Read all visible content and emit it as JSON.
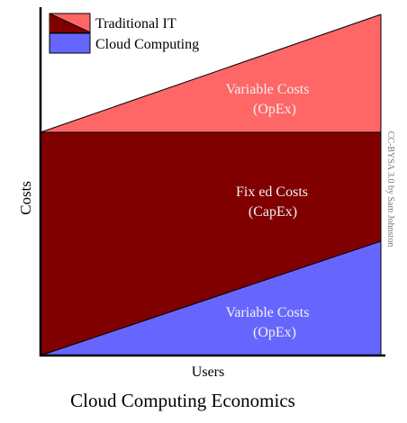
{
  "title": "Cloud Computing Economics",
  "x_axis_label": "Users",
  "y_axis_label": "Costs",
  "legend": {
    "traditional": "Traditional IT",
    "cloud": "Cloud Computing"
  },
  "regions": {
    "traditional_variable": {
      "line1": "Variable Costs",
      "line2": "(OpEx)"
    },
    "fixed": {
      "line1": "Fix ed Costs",
      "line2": "(CapEx)"
    },
    "cloud_variable": {
      "line1": "Variable Costs",
      "line2": "(OpEx)"
    }
  },
  "credit": "CC-BYSA 3.0 by Sam Johnston",
  "colors": {
    "traditional_variable": "#ff6666",
    "fixed": "#800000",
    "cloud": "#6666ff",
    "region_text": "#f2f2f2",
    "axis": "#000000",
    "credit_text": "#777777"
  }
}
